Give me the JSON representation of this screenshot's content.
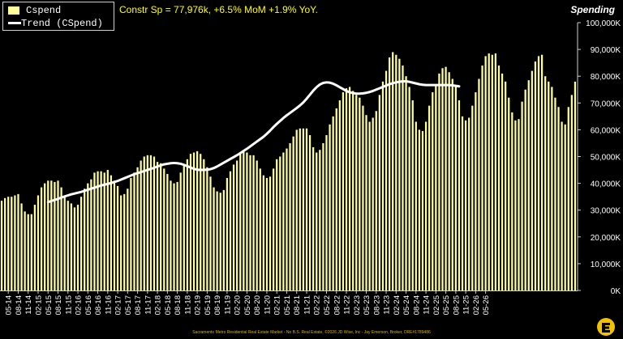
{
  "legend": {
    "bar_label": "Cspend",
    "line_label": "Trend (CSpend)"
  },
  "subtitle": "Constr Sp = 77,976k, +6.5% MoM +1.9% YoY.",
  "panel_title": "Spending",
  "footer": "Sacramento Metro Residential Real Estate Market - No B.S. Real Estate, ©2026 JD Wise, Inc - Jay Emerson, Broker, DRE#1789486",
  "colors": {
    "bars": "#ffff99",
    "trend": "#ffffff",
    "background": "#000000",
    "subtitle": "#ffff00"
  },
  "logo_icon": "jd-wise-logo-icon",
  "chart_data": {
    "type": "bar",
    "ylim": [
      0,
      100000
    ],
    "yticks": [
      0,
      10000,
      20000,
      30000,
      40000,
      50000,
      60000,
      70000,
      80000,
      90000,
      100000
    ],
    "ytick_labels": [
      "0K",
      "10,000K",
      "20,000K",
      "30,000K",
      "40,000K",
      "50,000K",
      "60,000K",
      "70,000K",
      "80,000K",
      "90,000K",
      "100,000K"
    ],
    "x_tick_labels": [
      "05-14",
      "08-14",
      "11-14",
      "02-15",
      "05-15",
      "08-15",
      "11-15",
      "02-16",
      "05-16",
      "08-16",
      "11-16",
      "02-17",
      "05-17",
      "08-17",
      "11-17",
      "02-18",
      "05-18",
      "08-18",
      "11-18",
      "02-19",
      "05-19",
      "08-19",
      "11-19",
      "02-20",
      "05-20",
      "08-20",
      "11-20",
      "02-21",
      "05-21",
      "08-21",
      "11-21",
      "02-22",
      "05-22",
      "08-22",
      "11-22",
      "02-23",
      "05-23",
      "08-23",
      "11-23",
      "02-24",
      "05-24",
      "08-24",
      "11-24",
      "02-25",
      "05-25",
      "08-25",
      "11-25",
      "02-26",
      "05-26"
    ],
    "first_month": "03-14",
    "series": [
      {
        "name": "Cspend",
        "kind": "bar",
        "values": [
          33500,
          34500,
          35000,
          35000,
          35500,
          36000,
          32500,
          29500,
          28500,
          28500,
          32000,
          35500,
          38500,
          40000,
          41000,
          41000,
          40500,
          41000,
          38500,
          35500,
          33500,
          32500,
          31000,
          32000,
          35000,
          38000,
          40000,
          41500,
          44000,
          44500,
          44500,
          44000,
          45000,
          43000,
          41000,
          39000,
          35500,
          36000,
          38000,
          42000,
          44000,
          46000,
          48500,
          50000,
          50500,
          50500,
          50000,
          48000,
          47500,
          45500,
          43500,
          41000,
          40000,
          40500,
          44000,
          46500,
          49000,
          51000,
          51500,
          52000,
          51000,
          49000,
          46000,
          42500,
          38500,
          37000,
          36500,
          37500,
          42000,
          44500,
          47000,
          48500,
          51000,
          52000,
          51500,
          50500,
          50500,
          48500,
          45500,
          43000,
          42000,
          42500,
          45500,
          49000,
          50000,
          51500,
          53000,
          55000,
          57500,
          60000,
          60500,
          60500,
          60500,
          58000,
          53500,
          51500,
          52500,
          55000,
          58000,
          62000,
          65000,
          68000,
          71000,
          74000,
          75500,
          76000,
          74500,
          73000,
          72000,
          69000,
          65500,
          63000,
          64500,
          67000,
          73000,
          78000,
          82000,
          87000,
          89000,
          88000,
          86500,
          84000,
          80000,
          76000,
          71000,
          63000,
          60000,
          59500,
          63000,
          69000,
          74000,
          77000,
          81000,
          83000,
          83500,
          81500,
          79000,
          76000,
          71000,
          65000,
          63500,
          64500,
          69000,
          74000,
          79000,
          84000,
          87500,
          88500,
          88000,
          88500,
          84000,
          81000,
          78000,
          72000,
          66500,
          63500,
          64000,
          70500,
          75000,
          78500,
          82000,
          85500,
          87500,
          88000,
          80000,
          78000,
          76000,
          72000,
          68500,
          63000,
          62000,
          68500,
          73000,
          77976
        ],
        "labels": [
          "Cspend"
        ]
      },
      {
        "name": "Trend (CSpend)",
        "kind": "line",
        "start_index": 14,
        "values": [
          33000,
          33400,
          33800,
          34200,
          34700,
          35100,
          35500,
          35900,
          36200,
          36500,
          36800,
          37200,
          37600,
          38000,
          38400,
          38800,
          39200,
          39500,
          39800,
          40100,
          40500,
          40900,
          41400,
          41900,
          42400,
          42900,
          43400,
          43800,
          44200,
          44600,
          45000,
          45400,
          45800,
          46300,
          46700,
          47100,
          47300,
          47500,
          47600,
          47500,
          47300,
          46900,
          46400,
          45900,
          45400,
          45100,
          45000,
          45000,
          45100,
          45300,
          45700,
          46300,
          47000,
          47700,
          48400,
          49100,
          49800,
          50500,
          51300,
          52100,
          52900,
          53800,
          54700,
          55600,
          56500,
          57400,
          58500,
          59700,
          61000,
          62200,
          63300,
          64400,
          65400,
          66300,
          67200,
          68100,
          69100,
          70200,
          71600,
          73100,
          74600,
          75900,
          76900,
          77500,
          77700,
          77600,
          77200,
          76600,
          75900,
          75200,
          74500,
          74000,
          73700,
          73500,
          73500,
          73600,
          73800,
          74100,
          74500,
          75000,
          75500,
          76000,
          76500,
          77000,
          77400,
          77700,
          77900,
          78100,
          78100,
          77900,
          77600,
          77300,
          77000,
          76800,
          76700,
          76700,
          76700,
          76700,
          76700,
          76700,
          76700,
          76700,
          76600,
          76400,
          76200
        ]
      }
    ]
  }
}
